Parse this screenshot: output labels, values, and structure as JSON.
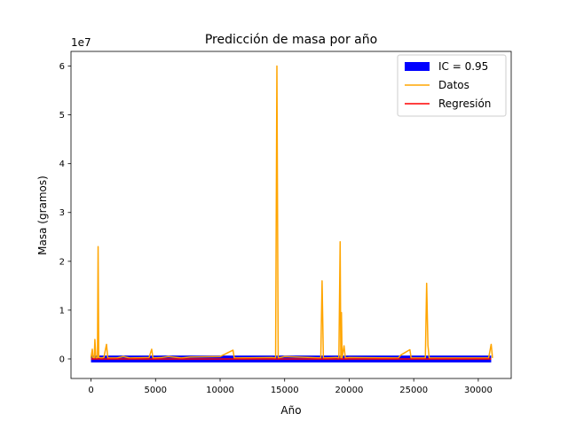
{
  "chart_data": {
    "type": "line",
    "title": "Predicción de masa por año",
    "xlabel": "Año",
    "ylabel": "Masa (gramos)",
    "y_scale_label": "1e7",
    "xlim": [
      -1550,
      32550
    ],
    "ylim": [
      -4000000,
      63000000
    ],
    "xticks": [
      0,
      5000,
      10000,
      15000,
      20000,
      25000,
      30000
    ],
    "xtick_labels": [
      "0",
      "5000",
      "10000",
      "15000",
      "20000",
      "25000",
      "30000"
    ],
    "yticks": [
      0,
      10000000,
      20000000,
      30000000,
      40000000,
      50000000,
      60000000
    ],
    "ytick_labels": [
      "0",
      "1",
      "2",
      "3",
      "4",
      "5",
      "6"
    ],
    "grid": false,
    "legend": {
      "placement": "upper right",
      "entries": [
        {
          "label": "IC = 0.95",
          "color": "#0000ff",
          "kind": "patch"
        },
        {
          "label": "Datos",
          "color": "#ffa500",
          "kind": "line"
        },
        {
          "label": "Regresión",
          "color": "#ff0000",
          "kind": "line"
        }
      ]
    },
    "series": [
      {
        "name": "Datos",
        "color": "#ffa500",
        "points": [
          [
            0,
            200000
          ],
          [
            100,
            2000000
          ],
          [
            150,
            300000
          ],
          [
            250,
            200000
          ],
          [
            300,
            4000000
          ],
          [
            380,
            200000
          ],
          [
            500,
            200000
          ],
          [
            550,
            23000000
          ],
          [
            600,
            300000
          ],
          [
            800,
            200000
          ],
          [
            1000,
            300000
          ],
          [
            1200,
            3000000
          ],
          [
            1300,
            200000
          ],
          [
            2000,
            200000
          ],
          [
            2500,
            500000
          ],
          [
            3000,
            200000
          ],
          [
            4500,
            300000
          ],
          [
            4700,
            2000000
          ],
          [
            4800,
            200000
          ],
          [
            5500,
            300000
          ],
          [
            6000,
            500000
          ],
          [
            7000,
            200000
          ],
          [
            7700,
            400000
          ],
          [
            10000,
            500000
          ],
          [
            11000,
            1800000
          ],
          [
            11100,
            200000
          ],
          [
            14000,
            300000
          ],
          [
            14300,
            200000
          ],
          [
            14400,
            60000000
          ],
          [
            14500,
            200000
          ],
          [
            15000,
            500000
          ],
          [
            17000,
            300000
          ],
          [
            17800,
            200000
          ],
          [
            17900,
            16000000
          ],
          [
            18000,
            200000
          ],
          [
            19000,
            300000
          ],
          [
            19200,
            200000
          ],
          [
            19300,
            24000000
          ],
          [
            19350,
            200000
          ],
          [
            19400,
            9500000
          ],
          [
            19450,
            200000
          ],
          [
            19600,
            2700000
          ],
          [
            19700,
            200000
          ],
          [
            20000,
            300000
          ],
          [
            23800,
            200000
          ],
          [
            24000,
            800000
          ],
          [
            24700,
            1900000
          ],
          [
            24800,
            200000
          ],
          [
            25900,
            200000
          ],
          [
            26000,
            15500000
          ],
          [
            26100,
            2800000
          ],
          [
            26200,
            200000
          ],
          [
            30800,
            200000
          ],
          [
            31000,
            3000000
          ],
          [
            31100,
            200000
          ]
        ]
      },
      {
        "name": "Regresión",
        "color": "#ff0000",
        "points": [
          [
            0,
            0
          ],
          [
            31000,
            0
          ]
        ]
      }
    ],
    "confidence_band": {
      "name": "IC = 0.95",
      "color": "#0000ff",
      "x": [
        0,
        31000
      ],
      "lower": [
        -700000,
        -700000
      ],
      "upper": [
        700000,
        700000
      ]
    }
  }
}
